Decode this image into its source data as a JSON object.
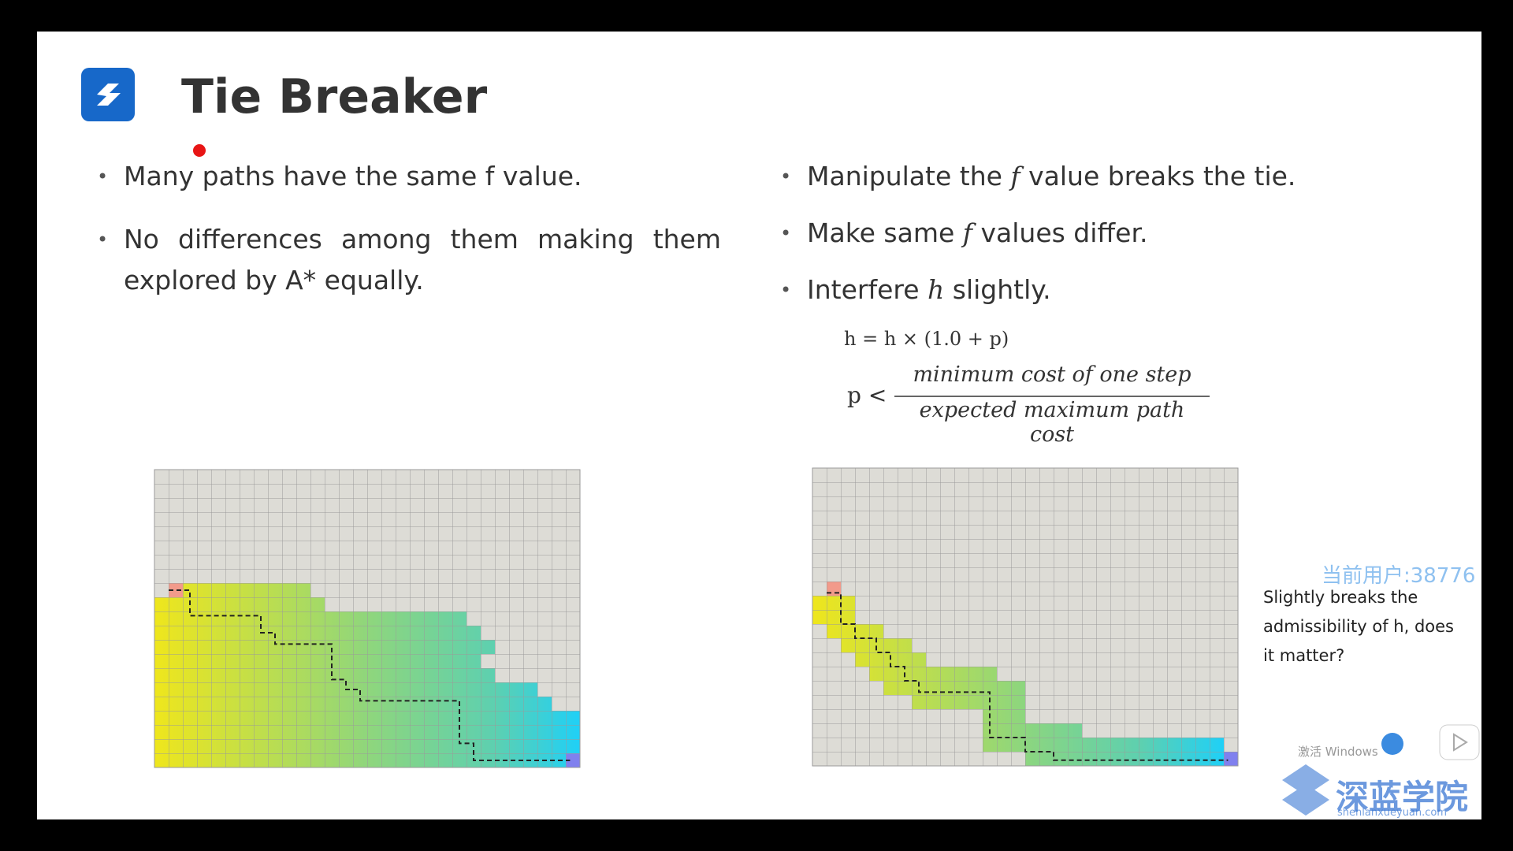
{
  "header": {
    "title": "Tie Breaker"
  },
  "left_bullets": [
    "Many paths have the same f value.",
    "No differences among them making them explored by A* equally."
  ],
  "right_bullets": [
    [
      "Manipulate the ",
      "f",
      " value breaks the tie."
    ],
    [
      "Make same ",
      "f",
      " values differ."
    ],
    [
      "Interfere ",
      "h",
      " slightly."
    ]
  ],
  "formula": {
    "equation": "h = h × (1.0 + p)",
    "lhs": "p <",
    "numerator": "minimum cost of one step",
    "denominator": "expected maximum path cost"
  },
  "note": "Slightly breaks the admissibility of h, does it matter?",
  "watermark": {
    "user": "当前用户:38776",
    "brand": "深蓝学院",
    "site": "shenlanxueyuan.com",
    "activation": "激活 Windows"
  }
}
